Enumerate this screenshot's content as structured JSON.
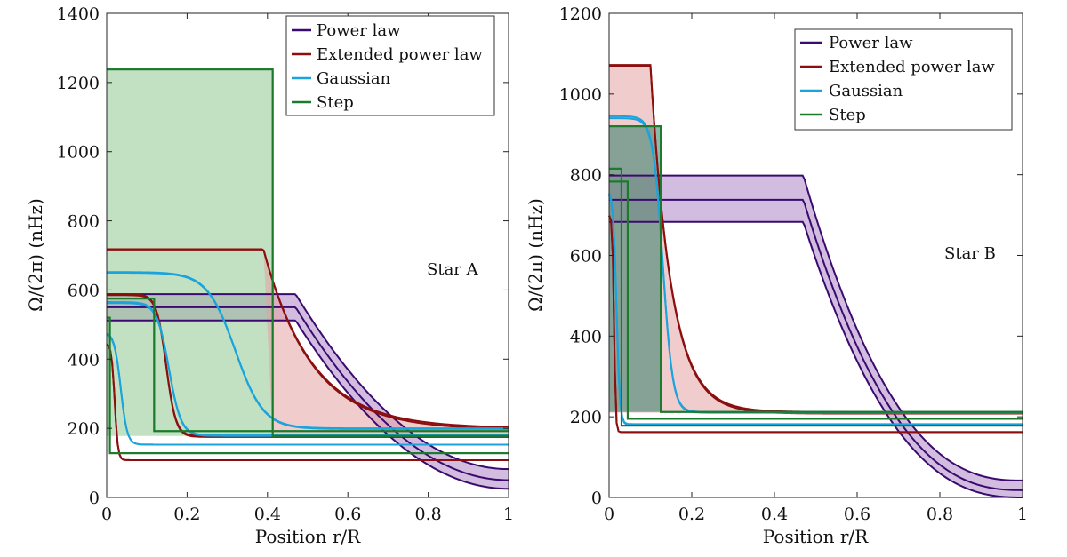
{
  "colors": {
    "power_law": "#3b0a6e",
    "extended_power_law": "#8b0f0f",
    "gaussian": "#1aa3dc",
    "step": "#1b7a2b",
    "power_law_fill": "#a57cc4",
    "extended_power_law_fill": "#e3a3a3",
    "gaussian_fill": "#6fb5d8",
    "step_fill": "#8fc98f"
  },
  "chart_data": [
    {
      "type": "line",
      "panel": "left",
      "annotation": "Star A",
      "xlabel": "Position r/R",
      "ylabel": "Ω/(2π) (nHz)",
      "xlim": [
        0,
        1
      ],
      "ylim": [
        0,
        1400
      ],
      "xticks": [
        0,
        0.2,
        0.4,
        0.6,
        0.8,
        1
      ],
      "xtick_labels": [
        "0",
        "0.2",
        "0.4",
        "0.6",
        "0.8",
        "1"
      ],
      "yticks": [
        0,
        200,
        400,
        600,
        800,
        1000,
        1200,
        1400
      ],
      "ytick_labels": [
        "0",
        "200",
        "400",
        "600",
        "800",
        "1000",
        "1200",
        "1400"
      ],
      "legend": [
        "Power law",
        "Extended power law",
        "Gaussian",
        "Step"
      ],
      "series": [
        {
          "name": "Power law",
          "kind": "powerlaw",
          "xc": 0.42,
          "x2": 0.47,
          "core": [
            588,
            550,
            512
          ],
          "env": [
            82,
            50,
            25
          ],
          "p": 2.0
        },
        {
          "name": "Extended power law",
          "kind": "extpow",
          "xc": 0.39,
          "core": [
            718,
            717
          ],
          "env": [
            200,
            195
          ],
          "tau": 0.12
        },
        {
          "name": "Extended power law",
          "kind": "sigmoid",
          "xc": 0.148,
          "w": 0.012,
          "core": [
            588,
            585
          ],
          "env": [
            178,
            175
          ]
        },
        {
          "name": "Extended power law",
          "kind": "sigmoid",
          "xc": 0.02,
          "w": 0.004,
          "core": [
            445,
            445
          ],
          "env": [
            108,
            108
          ]
        },
        {
          "name": "Gaussian",
          "kind": "sigmoid",
          "xc": 0.32,
          "w": 0.035,
          "core": [
            652,
            650
          ],
          "env": [
            200,
            198
          ]
        },
        {
          "name": "Gaussian",
          "kind": "sigmoid",
          "xc": 0.155,
          "w": 0.015,
          "core": [
            565,
            562
          ],
          "env": [
            180,
            178
          ]
        },
        {
          "name": "Gaussian",
          "kind": "sigmoid",
          "xc": 0.035,
          "w": 0.008,
          "core": [
            478,
            475
          ],
          "env": [
            153,
            153
          ]
        },
        {
          "name": "Step",
          "kind": "step",
          "xc": 0.413,
          "core": [
            1238,
            1238
          ],
          "env": [
            178,
            178
          ]
        },
        {
          "name": "Step",
          "kind": "step",
          "xc": 0.118,
          "core": [
            575,
            575
          ],
          "env": [
            192,
            192
          ]
        },
        {
          "name": "Step",
          "kind": "step",
          "xc": 0.008,
          "core": [
            520,
            520
          ],
          "env": [
            128,
            128
          ]
        }
      ],
      "bands": [
        {
          "color": "step",
          "from": [
            1238,
            1238
          ],
          "to": [
            520,
            520
          ],
          "x0": 0,
          "x1": 0.413,
          "y0a": 1238,
          "y0b": 178,
          "note": "step band"
        },
        {
          "color": "extended_power_law",
          "note": "ext band"
        },
        {
          "color": "power_law",
          "note": "pl band"
        }
      ]
    },
    {
      "type": "line",
      "panel": "right",
      "annotation": "Star B",
      "xlabel": "Position r/R",
      "ylabel": "Ω/(2π) (nHz)",
      "xlim": [
        0,
        1
      ],
      "ylim": [
        0,
        1200
      ],
      "xticks": [
        0,
        0.2,
        0.4,
        0.6,
        0.8,
        1
      ],
      "xtick_labels": [
        "0",
        "0.2",
        "0.4",
        "0.6",
        "0.8",
        "1"
      ],
      "yticks": [
        0,
        200,
        400,
        600,
        800,
        1000,
        1200
      ],
      "ytick_labels": [
        "0",
        "200",
        "400",
        "600",
        "800",
        "1000",
        "1200"
      ],
      "legend": [
        "Power law",
        "Extended power law",
        "Gaussian",
        "Step"
      ],
      "series": [
        {
          "name": "Power law",
          "kind": "powerlaw",
          "xc": 0.47,
          "core": [
            798,
            738,
            683
          ],
          "env": [
            42,
            18,
            0
          ],
          "p": 2.5
        },
        {
          "name": "Extended power law",
          "kind": "extpow",
          "xc": 0.1,
          "core": [
            1072,
            1070
          ],
          "env": [
            212,
            208
          ],
          "tau": 0.05
        },
        {
          "name": "Extended power law",
          "kind": "sigmoid",
          "xc": 0.012,
          "w": 0.002,
          "core": [
            700,
            700
          ],
          "env": [
            162,
            162
          ]
        },
        {
          "name": "Gaussian",
          "kind": "sigmoid",
          "xc": 0.13,
          "w": 0.012,
          "core": [
            945,
            940
          ],
          "env": [
            212,
            210
          ]
        },
        {
          "name": "Gaussian",
          "kind": "sigmoid",
          "xc": 0.018,
          "w": 0.004,
          "core": [
            760,
            755
          ],
          "env": [
            182,
            180
          ]
        },
        {
          "name": "Step",
          "kind": "step",
          "xc": 0.125,
          "core": [
            920,
            920
          ],
          "env": [
            212,
            212
          ]
        },
        {
          "name": "Step",
          "kind": "step",
          "xc": 0.045,
          "core": [
            783,
            783
          ],
          "env": [
            195,
            195
          ]
        },
        {
          "name": "Step",
          "kind": "step",
          "xc": 0.03,
          "core": [
            815,
            815
          ],
          "env": [
            178,
            178
          ]
        }
      ]
    }
  ]
}
